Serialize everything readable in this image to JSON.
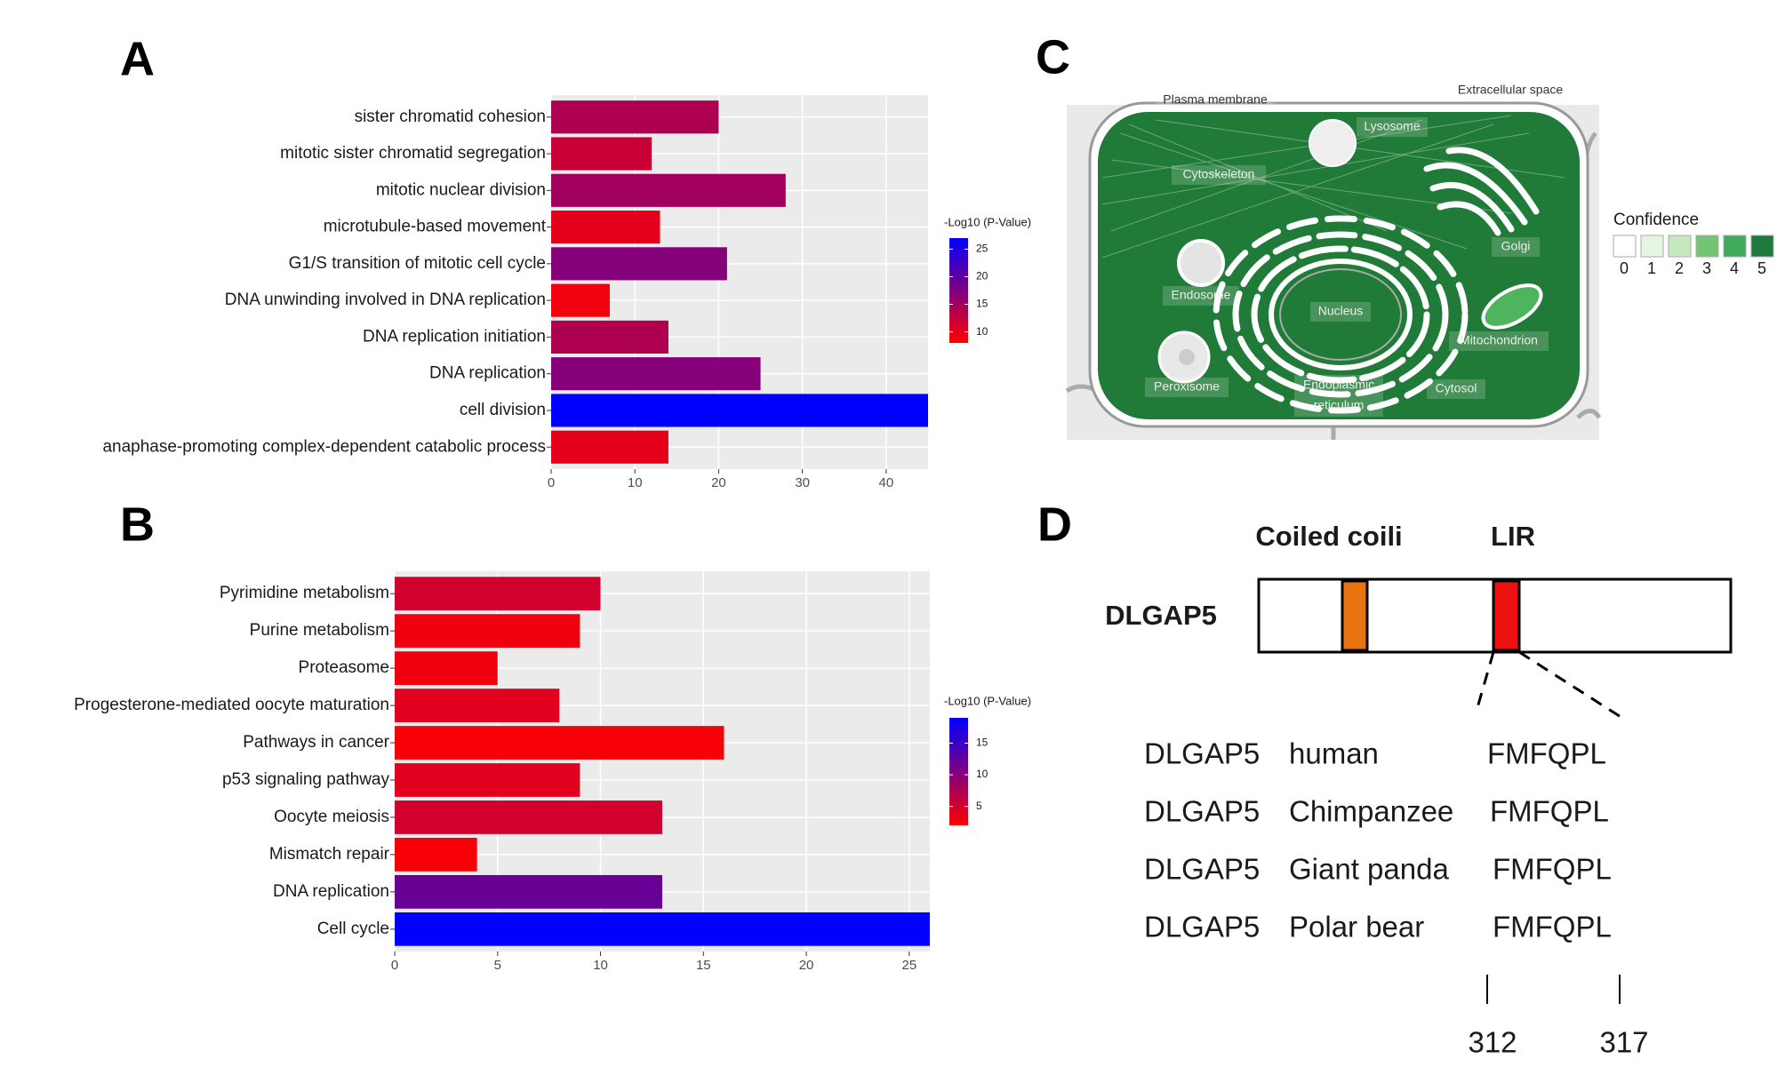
{
  "panel_labels": [
    "A",
    "B",
    "C",
    "D"
  ],
  "chart_data": [
    {
      "type": "barh",
      "categories": [
        "sister chromatid cohesion",
        "mitotic sister chromatid segregation",
        "mitotic nuclear division",
        "microtubule-based movement",
        "G1/S transition of mitotic cell cycle",
        "DNA unwinding involved in DNA replication",
        "DNA replication initiation",
        "DNA replication",
        "cell division",
        "anaphase-promoting complex-dependent catabolic process"
      ],
      "values": [
        20,
        12,
        28,
        13,
        21,
        7,
        14,
        25,
        45,
        14
      ],
      "color_values": [
        14,
        12,
        15,
        10,
        17,
        9,
        14,
        17,
        27,
        10
      ],
      "xlim": [
        0,
        45
      ],
      "xticks": [
        0,
        10,
        20,
        30,
        40
      ],
      "grid": true,
      "colorbar": {
        "title": "-Log10 (P-Value)",
        "lim": [
          8,
          27
        ],
        "ticks": [
          10,
          15,
          20,
          25
        ],
        "low": "#ff0000",
        "high": "#0000ff"
      }
    },
    {
      "type": "barh",
      "categories": [
        "Pyrimidine metabolism",
        "Purine metabolism",
        "Proteasome",
        "Progesterone-mediated oocyte maturation",
        "Pathways in cancer",
        "p53 signaling pathway",
        "Oocyte meiosis",
        "Mismatch repair",
        "DNA replication",
        "Cell cycle"
      ],
      "values": [
        10,
        9,
        5,
        8,
        16,
        9,
        13,
        4,
        13,
        26
      ],
      "color_values": [
        5,
        3,
        3,
        4,
        2.5,
        4,
        5,
        2.5,
        12,
        19
      ],
      "xlim": [
        0,
        26
      ],
      "xticks": [
        0,
        5,
        10,
        15,
        20,
        25
      ],
      "grid": true,
      "colorbar": {
        "title": "-Log10 (P-Value)",
        "lim": [
          2,
          19
        ],
        "ticks": [
          5,
          10,
          15
        ],
        "low": "#ff0000",
        "high": "#0000ff"
      }
    }
  ],
  "cell_diagram": {
    "labels": {
      "plasma_membrane": "Plasma membrane",
      "extracellular": "Extracellular space",
      "lysosome": "Lysosome",
      "cytoskeleton": "Cytoskeleton",
      "golgi": "Golgi",
      "endosome": "Endosome",
      "nucleus": "Nucleus",
      "mitochondrion": "Mitochondrion",
      "peroxisome": "Peroxisome",
      "er": [
        "Endoplasmic",
        "reticulum"
      ],
      "cytosol": "Cytosol"
    },
    "legend": {
      "title": "Confidence",
      "levels": [
        0,
        1,
        2,
        3,
        4,
        5
      ],
      "colors": [
        "#ffffff",
        "#e5f5e0",
        "#c7e9c0",
        "#74c476",
        "#41ab5d",
        "#1e7a3a"
      ]
    }
  },
  "domain_diagram": {
    "protein": "DLGAP5",
    "domains": [
      {
        "label": "Coiled coili",
        "color": "#e8730f"
      },
      {
        "label": "LIR",
        "color": "#ee1111"
      }
    ],
    "alignment": [
      [
        "DLGAP5",
        "human",
        "FMFQPL"
      ],
      [
        "DLGAP5",
        "Chimpanzee",
        "FMFQPL"
      ],
      [
        "DLGAP5",
        "Giant panda",
        "FMFQPL"
      ],
      [
        "DLGAP5",
        "Polar bear",
        "FMFQPL"
      ]
    ],
    "positions": [
      312,
      317
    ]
  }
}
